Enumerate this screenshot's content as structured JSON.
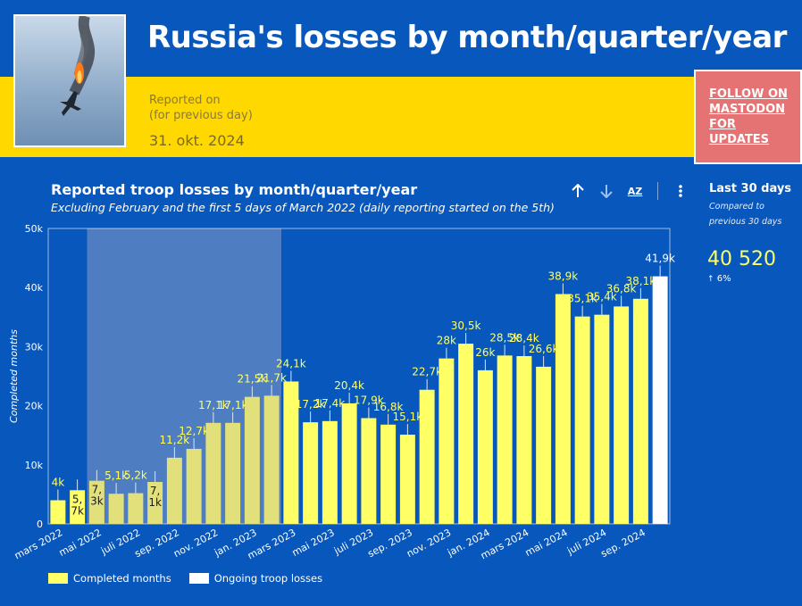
{
  "header": {
    "title": "Russia's losses by month/quarter/year",
    "reported_on": "Reported on",
    "reported_note": "(for previous day)",
    "reported_date": "31. okt. 2024",
    "follow_line1": "FOLLOW ON",
    "follow_line2": "MASTODON",
    "follow_line3": "FOR UPDATES"
  },
  "sidebar": {
    "title": "Last 30 days",
    "compared_line1": "Compared to",
    "compared_line2": "previous 30 days",
    "value": "40 520",
    "change": "6%"
  },
  "toolbar": {
    "sort_az_label": "AZ"
  },
  "legend": {
    "completed": "Completed months",
    "ongoing": "Ongoing troop losses"
  },
  "colors": {
    "background": "#0757bd",
    "banner_yellow": "#ffd800",
    "bar_completed": "#ffff66",
    "bar_highlighted": "#e2e07a",
    "bar_ongoing": "#ffffff",
    "follow_box": "#e57373",
    "highlight_band": "#5b84c2"
  },
  "icons": [
    "arrow-up-icon",
    "arrow-down-icon",
    "sort-az-icon",
    "more-vert-icon",
    "trend-up-icon"
  ],
  "chart_data": {
    "type": "bar",
    "title": "Reported troop losses by month/quarter/year",
    "subtitle": "Excluding February and the first 5 days of March 2022 (daily reporting started on the 5th)",
    "ylabel": "Completed months",
    "ylim": [
      0,
      50000
    ],
    "yticks": [
      0,
      10000,
      20000,
      30000,
      40000,
      50000
    ],
    "ytick_labels": [
      "0",
      "10k",
      "20k",
      "30k",
      "40k",
      "50k"
    ],
    "highlight_range": [
      "mai 2022",
      "feb. 2023"
    ],
    "categories": [
      "mars 2022",
      "apr. 2022",
      "mai 2022",
      "juni 2022",
      "juli 2022",
      "aug. 2022",
      "sep. 2022",
      "okt. 2022",
      "nov. 2022",
      "des. 2022",
      "jan. 2023",
      "feb. 2023",
      "mars 2023",
      "apr. 2023",
      "mai 2023",
      "juni 2023",
      "juli 2023",
      "aug. 2023",
      "sep. 2023",
      "okt. 2023",
      "nov. 2023",
      "des. 2023",
      "jan. 2024",
      "feb. 2024",
      "mars 2024",
      "apr. 2024",
      "mai 2024",
      "juni 2024",
      "juli 2024",
      "aug. 2024",
      "sep. 2024",
      "okt. 2024"
    ],
    "xtick_labels": [
      "mars 2022",
      "",
      "mai 2022",
      "",
      "juli 2022",
      "",
      "sep. 2022",
      "",
      "nov. 2022",
      "",
      "jan. 2023",
      "",
      "mars 2023",
      "",
      "mai 2023",
      "",
      "juli 2023",
      "",
      "sep. 2023",
      "",
      "nov. 2023",
      "",
      "jan. 2024",
      "",
      "mars 2024",
      "",
      "mai 2024",
      "",
      "juli 2024",
      "",
      "sep. 2024",
      ""
    ],
    "series": [
      {
        "name": "Completed months",
        "values": [
          4000,
          5700,
          7300,
          5100,
          5200,
          7100,
          11200,
          12700,
          17100,
          17100,
          21500,
          21700,
          24100,
          17200,
          17400,
          20400,
          17900,
          16800,
          15100,
          22700,
          28000,
          30500,
          26000,
          28500,
          28400,
          26600,
          38900,
          35100,
          35400,
          36800,
          38100,
          null
        ],
        "labels": [
          "4k",
          "5,\n7k",
          "7,\n3k",
          "5,1k",
          "5,2k",
          "7,\n1k",
          "11,2k",
          "12,7k",
          "17,1k",
          "17,1k",
          "21,5k",
          "21,7k",
          "24,1k",
          "17,2k",
          "17,4k",
          "20,4k",
          "17,9k",
          "16,8k",
          "15,1k",
          "22,7k",
          "28k",
          "30,5k",
          "26k",
          "28,5k",
          "28,4k",
          "26,6k",
          "38,9k",
          "35,1k",
          "35,4k",
          "36,8k",
          "38,1k",
          ""
        ]
      },
      {
        "name": "Ongoing troop losses",
        "values": [
          null,
          null,
          null,
          null,
          null,
          null,
          null,
          null,
          null,
          null,
          null,
          null,
          null,
          null,
          null,
          null,
          null,
          null,
          null,
          null,
          null,
          null,
          null,
          null,
          null,
          null,
          null,
          null,
          null,
          null,
          null,
          41900
        ],
        "labels": [
          "",
          "",
          "",
          "",
          "",
          "",
          "",
          "",
          "",
          "",
          "",
          "",
          "",
          "",
          "",
          "",
          "",
          "",
          "",
          "",
          "",
          "",
          "",
          "",
          "",
          "",
          "",
          "",
          "",
          "",
          "",
          "41,9k"
        ]
      }
    ]
  }
}
